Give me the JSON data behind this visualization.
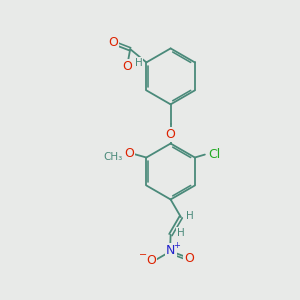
{
  "bg_color": "#e8eae8",
  "bond_color": "#4a8a7a",
  "bond_width": 1.3,
  "atom_colors": {
    "O": "#dd2200",
    "N": "#2222cc",
    "Cl": "#22aa22",
    "H": "#4a8a7a",
    "C": "#4a8a7a"
  },
  "font_size": 9,
  "font_size_small": 7.5
}
